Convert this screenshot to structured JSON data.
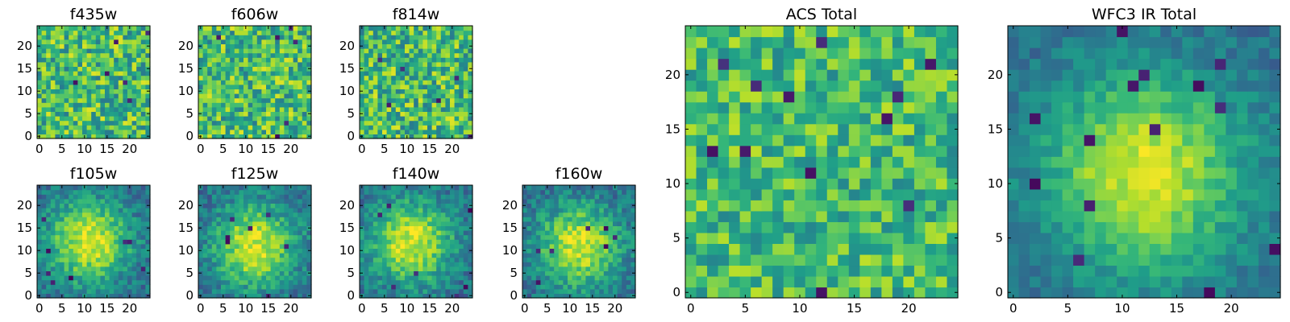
{
  "chart_data": [
    {
      "type": "heatmap",
      "title": "f435w",
      "colormap": "viridis",
      "grid_size": [
        25,
        25
      ],
      "pattern": "noise",
      "center": [
        12,
        11
      ],
      "noise": 0.55,
      "dip_count": 6,
      "xlim": [
        -0.5,
        24.5
      ],
      "ylim": [
        -0.5,
        24.5
      ],
      "xticks": [
        0,
        5,
        10,
        15,
        20
      ],
      "yticks": [
        0,
        5,
        10,
        15,
        20
      ]
    },
    {
      "type": "heatmap",
      "title": "f606w",
      "colormap": "viridis",
      "grid_size": [
        25,
        25
      ],
      "pattern": "noise",
      "center": [
        12,
        11
      ],
      "noise": 0.55,
      "dip_count": 6,
      "xlim": [
        -0.5,
        24.5
      ],
      "ylim": [
        -0.5,
        24.5
      ],
      "xticks": [
        0,
        5,
        10,
        15,
        20
      ],
      "yticks": [
        0,
        5,
        10,
        15,
        20
      ]
    },
    {
      "type": "heatmap",
      "title": "f814w",
      "colormap": "viridis",
      "grid_size": [
        25,
        25
      ],
      "pattern": "noise",
      "center": [
        12,
        11
      ],
      "noise": 0.55,
      "dip_count": 6,
      "xlim": [
        -0.5,
        24.5
      ],
      "ylim": [
        -0.5,
        24.5
      ],
      "xticks": [
        0,
        5,
        10,
        15,
        20
      ],
      "yticks": [
        0,
        5,
        10,
        15,
        20
      ]
    },
    {
      "type": "heatmap",
      "title": "f105w",
      "colormap": "viridis",
      "grid_size": [
        25,
        25
      ],
      "pattern": "blob",
      "center": [
        11,
        12
      ],
      "noise": 0.3,
      "dip_count": 8,
      "xlim": [
        -0.5,
        24.5
      ],
      "ylim": [
        -0.5,
        24.5
      ],
      "xticks": [
        0,
        5,
        10,
        15,
        20
      ],
      "yticks": [
        0,
        5,
        10,
        15,
        20
      ]
    },
    {
      "type": "heatmap",
      "title": "f125w",
      "colormap": "viridis",
      "grid_size": [
        25,
        25
      ],
      "pattern": "blob",
      "center": [
        12,
        11
      ],
      "noise": 0.3,
      "dip_count": 7,
      "xlim": [
        -0.5,
        24.5
      ],
      "ylim": [
        -0.5,
        24.5
      ],
      "xticks": [
        0,
        5,
        10,
        15,
        20
      ],
      "yticks": [
        0,
        5,
        10,
        15,
        20
      ]
    },
    {
      "type": "heatmap",
      "title": "f140w",
      "colormap": "viridis",
      "grid_size": [
        25,
        25
      ],
      "pattern": "blob",
      "center": [
        11,
        12
      ],
      "noise": 0.3,
      "dip_count": 7,
      "xlim": [
        -0.5,
        24.5
      ],
      "ylim": [
        -0.5,
        24.5
      ],
      "xticks": [
        0,
        5,
        10,
        15,
        20
      ],
      "yticks": [
        0,
        5,
        10,
        15,
        20
      ]
    },
    {
      "type": "heatmap",
      "title": "f160w",
      "colormap": "viridis",
      "grid_size": [
        25,
        25
      ],
      "pattern": "blob",
      "center": [
        12,
        11
      ],
      "noise": 0.3,
      "dip_count": 7,
      "xlim": [
        -0.5,
        24.5
      ],
      "ylim": [
        -0.5,
        24.5
      ],
      "xticks": [
        0,
        5,
        10,
        15,
        20
      ],
      "yticks": [
        0,
        5,
        10,
        15,
        20
      ]
    },
    {
      "type": "heatmap",
      "title": "ACS Total",
      "colormap": "viridis",
      "grid_size": [
        25,
        25
      ],
      "pattern": "noise",
      "center": [
        12,
        11
      ],
      "noise": 0.45,
      "dip_count": 12,
      "xlim": [
        -0.5,
        24.5
      ],
      "ylim": [
        -0.5,
        24.5
      ],
      "xticks": [
        0,
        5,
        10,
        15,
        20
      ],
      "yticks": [
        0,
        5,
        10,
        15,
        20
      ]
    },
    {
      "type": "heatmap",
      "title": "WFC3 IR Total",
      "colormap": "viridis",
      "grid_size": [
        25,
        25
      ],
      "pattern": "blob",
      "center": [
        12,
        11
      ],
      "noise": 0.2,
      "dip_count": 14,
      "xlim": [
        -0.5,
        24.5
      ],
      "ylim": [
        -0.5,
        24.5
      ],
      "xticks": [
        0,
        5,
        10,
        15,
        20
      ],
      "yticks": [
        0,
        5,
        10,
        15,
        20
      ]
    }
  ]
}
